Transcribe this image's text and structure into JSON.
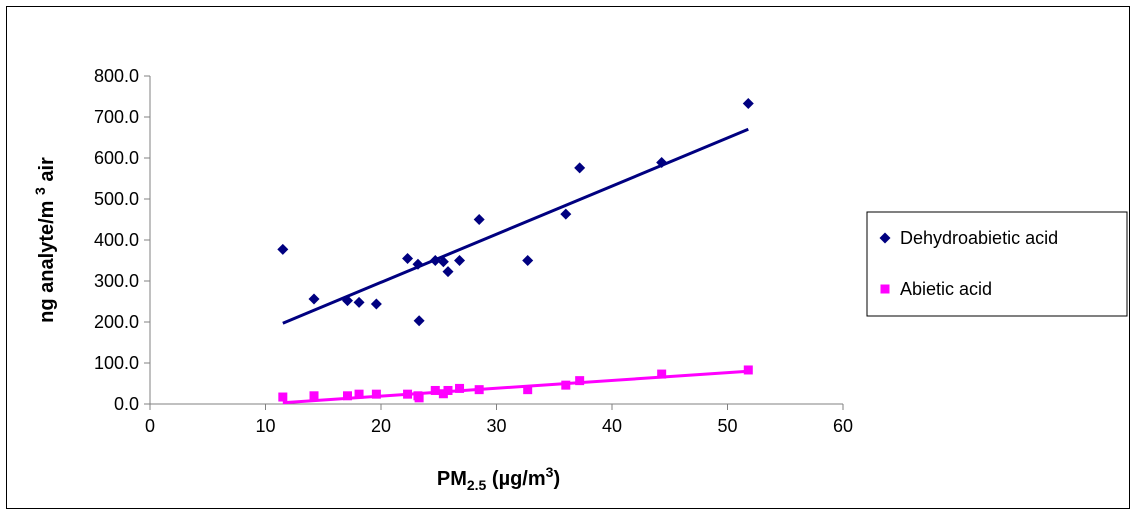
{
  "chart_data": {
    "type": "scatter",
    "title": "",
    "xlabel": {
      "main": "PM",
      "sub": "2.5",
      "rest": " (",
      "mu": "µ",
      "unit": "g/m",
      "sup": "3",
      "close": ")"
    },
    "ylabel": {
      "main": "ng analyte/m ",
      "sup": "3",
      "rest": " air"
    },
    "xlim": [
      0,
      60
    ],
    "ylim": [
      0,
      800
    ],
    "x_ticks": [
      "0",
      "10",
      "20",
      "30",
      "40",
      "50",
      "60"
    ],
    "y_ticks": [
      "0.0",
      "100.0",
      "200.0",
      "300.0",
      "400.0",
      "500.0",
      "600.0",
      "700.0",
      "800.0"
    ],
    "grid": false,
    "legend_position": "right",
    "series": [
      {
        "name": "Dehydroabietic acid",
        "color": "#000080",
        "marker": "diamond",
        "x": [
          11.5,
          14.2,
          17.1,
          18.1,
          19.6,
          22.3,
          23.2,
          23.3,
          24.7,
          25.4,
          25.8,
          26.8,
          28.5,
          32.7,
          36.0,
          37.2,
          44.3,
          51.8
        ],
        "y": [
          377,
          256,
          252,
          248,
          244,
          355,
          341,
          203,
          350,
          347,
          323,
          350,
          450,
          350,
          463,
          576,
          589,
          733
        ],
        "trend": {
          "x": [
            11.5,
            51.8
          ],
          "y": [
            197,
            670
          ]
        }
      },
      {
        "name": "Abietic acid",
        "color": "#FF00FF",
        "marker": "square",
        "x": [
          11.5,
          14.2,
          17.1,
          18.1,
          19.6,
          22.3,
          23.2,
          23.3,
          24.7,
          25.4,
          25.8,
          26.8,
          28.5,
          32.7,
          36.0,
          37.2,
          44.3,
          51.8
        ],
        "y": [
          17,
          20,
          20,
          24,
          24,
          24,
          20,
          15,
          33,
          25,
          33,
          38,
          35,
          35,
          46,
          57,
          73,
          83
        ],
        "trend": {
          "x": [
            11.5,
            51.8
          ],
          "y": [
            3,
            80
          ]
        }
      }
    ]
  }
}
